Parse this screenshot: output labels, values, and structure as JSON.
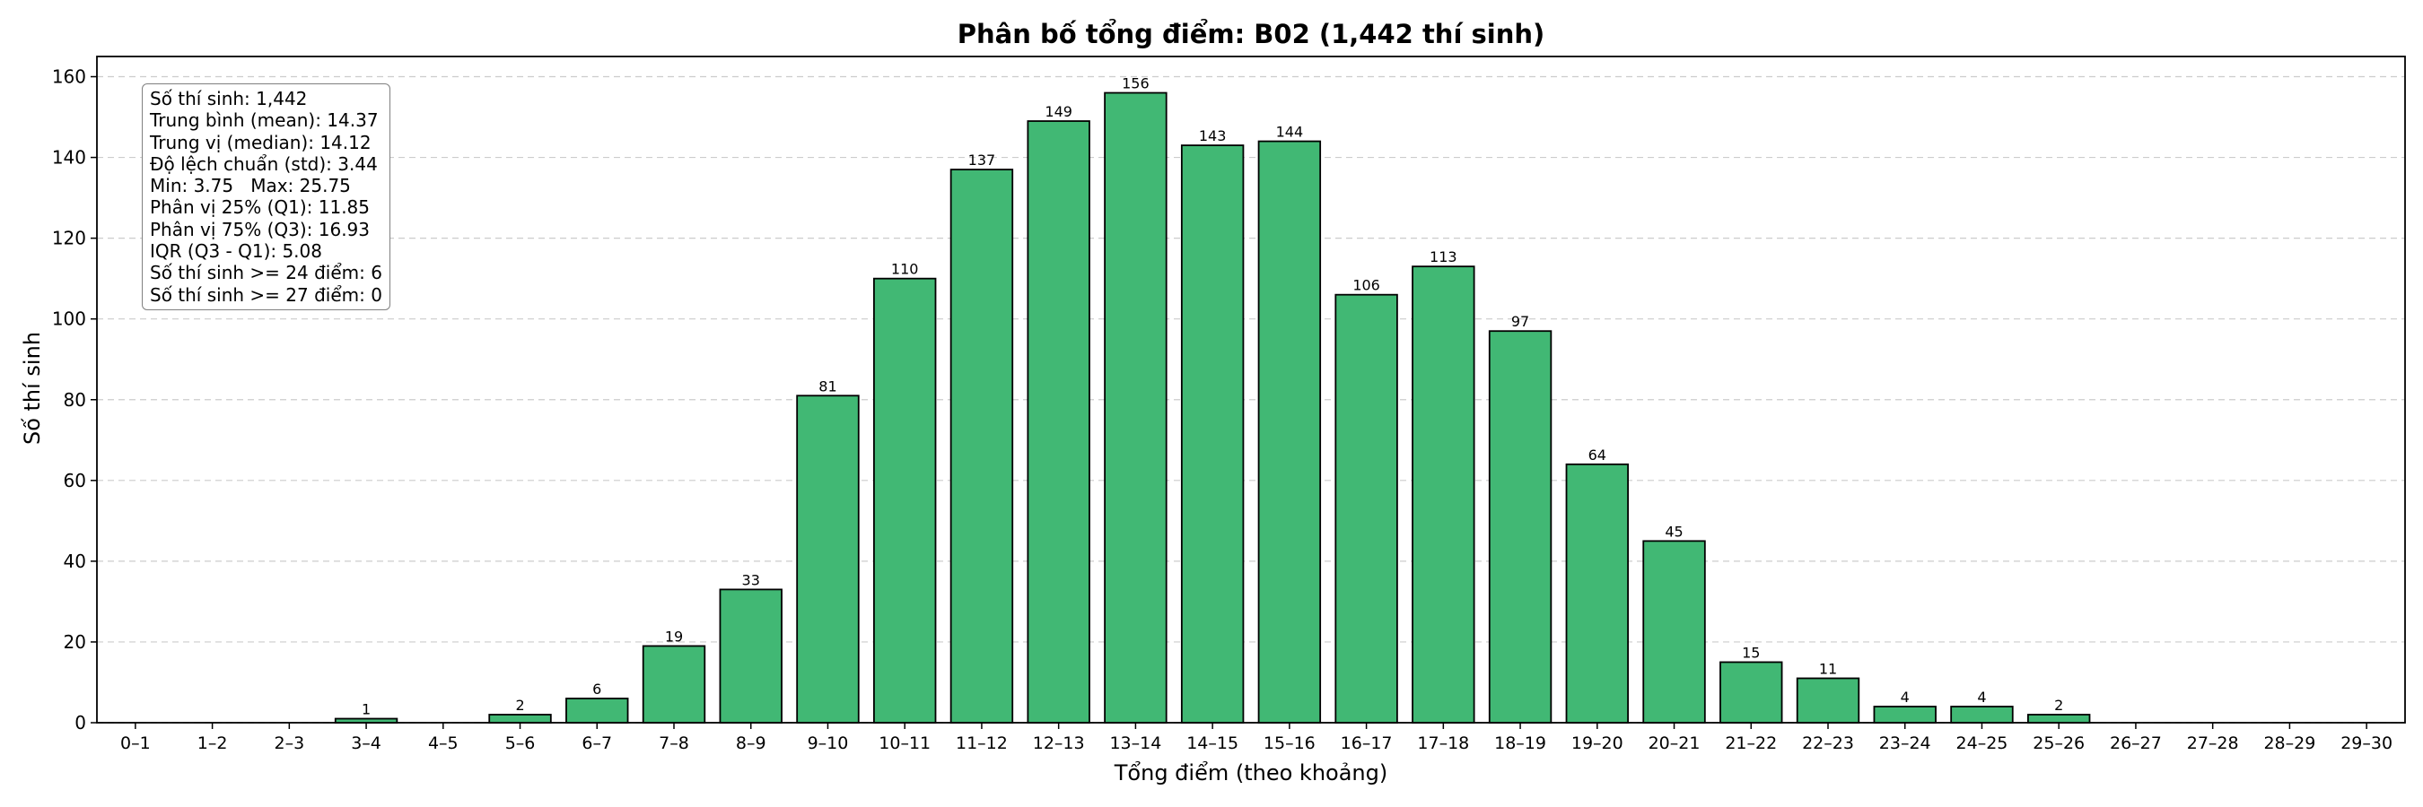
{
  "chart_data": {
    "type": "bar",
    "title": "Phân bố tổng điểm: B02 (1,442 thí sinh)",
    "xlabel": "Tổng điểm (theo khoảng)",
    "ylabel": "Số thí sinh",
    "ylim": [
      0,
      165
    ],
    "yticks": [
      0,
      20,
      40,
      60,
      80,
      100,
      120,
      140,
      160
    ],
    "grid": "horizontal dashed",
    "bar_color": "#41b874",
    "categories": [
      "0–1",
      "1–2",
      "2–3",
      "3–4",
      "4–5",
      "5–6",
      "6–7",
      "7–8",
      "8–9",
      "9–10",
      "10–11",
      "11–12",
      "12–13",
      "13–14",
      "14–15",
      "15–16",
      "16–17",
      "17–18",
      "18–19",
      "19–20",
      "20–21",
      "21–22",
      "22–23",
      "23–24",
      "24–25",
      "25–26",
      "26–27",
      "27–28",
      "28–29",
      "29–30"
    ],
    "values": [
      0,
      0,
      0,
      1,
      0,
      2,
      6,
      19,
      33,
      81,
      110,
      137,
      149,
      156,
      143,
      144,
      106,
      113,
      97,
      64,
      45,
      15,
      11,
      4,
      4,
      2,
      0,
      0,
      0,
      0
    ],
    "data_labels": [
      "",
      "",
      "",
      "1",
      "",
      "2",
      "6",
      "19",
      "33",
      "81",
      "110",
      "137",
      "149",
      "156",
      "143",
      "144",
      "106",
      "113",
      "97",
      "64",
      "45",
      "15",
      "11",
      "4",
      "4",
      "2",
      "",
      "",
      "",
      ""
    ]
  },
  "stats": {
    "lines": [
      "Số thí sinh: 1,442",
      "Trung bình (mean): 14.37",
      "Trung vị (median): 14.12",
      "Độ lệch chuẩn (std): 3.44",
      "Min: 3.75   Max: 25.75",
      "Phân vị 25% (Q1): 11.85",
      "Phân vị 75% (Q3): 16.93",
      "IQR (Q3 - Q1): 5.08",
      "Số thí sinh >= 24 điểm: 6",
      "Số thí sinh >= 27 điểm: 0"
    ]
  }
}
